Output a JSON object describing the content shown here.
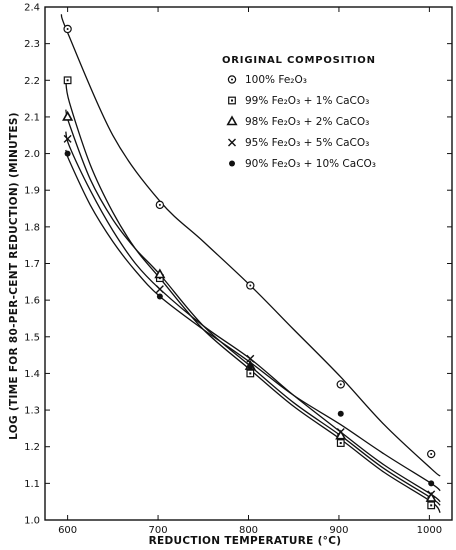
{
  "chart_data": {
    "type": "scatter",
    "xlabel": "REDUCTION TEMPERATURE (°C)",
    "ylabel": "LOG (TIME FOR 80-PER-CENT REDUCTION) (MINUTES)",
    "xlim": [
      575,
      1025
    ],
    "ylim": [
      1.0,
      2.4
    ],
    "x_ticks": [
      600,
      700,
      800,
      900,
      1000
    ],
    "y_ticks": [
      1.0,
      1.1,
      1.2,
      1.3,
      1.4,
      1.5,
      1.6,
      1.7,
      1.8,
      1.9,
      2.0,
      2.1,
      2.2,
      2.3,
      2.4
    ],
    "grid": false,
    "legend": {
      "title": "ORIGINAL COMPOSITION",
      "placement": "top-right"
    },
    "series": [
      {
        "name": "100% Fe₂O₃",
        "marker": "circle-dot",
        "x": [
          600,
          702,
          802,
          902,
          1002
        ],
        "y": [
          2.34,
          1.86,
          1.64,
          1.37,
          1.18
        ],
        "curve_x": [
          593,
          600,
          650,
          702,
          750,
          802,
          850,
          902,
          950,
          1002,
          1012
        ],
        "curve_y": [
          2.38,
          2.33,
          2.05,
          1.87,
          1.76,
          1.64,
          1.52,
          1.39,
          1.26,
          1.14,
          1.12
        ]
      },
      {
        "name": "99% Fe₂O₃ + 1% CaCO₃",
        "marker": "square-dot",
        "x": [
          600,
          702,
          802,
          902,
          1002
        ],
        "y": [
          2.2,
          1.66,
          1.4,
          1.21,
          1.04
        ],
        "curve_x": [
          598,
          602,
          625,
          650,
          675,
          702,
          750,
          802,
          850,
          902,
          950,
          1002,
          1012
        ],
        "curve_y": [
          2.2,
          2.14,
          1.97,
          1.84,
          1.74,
          1.66,
          1.52,
          1.41,
          1.31,
          1.22,
          1.13,
          1.05,
          1.02
        ]
      },
      {
        "name": "98% Fe₂O₃ + 2% CaCO₃",
        "marker": "triangle",
        "x": [
          600,
          702,
          802,
          902,
          1002
        ],
        "y": [
          2.1,
          1.67,
          1.42,
          1.23,
          1.06
        ],
        "curve_x": [
          598,
          602,
          625,
          650,
          675,
          702,
          750,
          802,
          850,
          902,
          950,
          1002,
          1012
        ],
        "curve_y": [
          2.12,
          2.08,
          1.93,
          1.82,
          1.74,
          1.67,
          1.53,
          1.42,
          1.32,
          1.23,
          1.14,
          1.06,
          1.04
        ]
      },
      {
        "name": "95% Fe₂O₃ + 5% CaCO₃",
        "marker": "x",
        "x": [
          600,
          702,
          802,
          902,
          1002
        ],
        "y": [
          2.04,
          1.63,
          1.44,
          1.24,
          1.07
        ],
        "curve_x": [
          598,
          602,
          625,
          650,
          675,
          702,
          750,
          802,
          850,
          902,
          950,
          1002,
          1012
        ],
        "curve_y": [
          2.06,
          2.02,
          1.9,
          1.79,
          1.7,
          1.63,
          1.53,
          1.44,
          1.34,
          1.24,
          1.15,
          1.07,
          1.05
        ]
      },
      {
        "name": "90% Fe₂O₃ + 10% CaCO₃",
        "marker": "filled-circle",
        "x": [
          600,
          702,
          802,
          902,
          1002
        ],
        "y": [
          2.0,
          1.61,
          1.42,
          1.29,
          1.1
        ],
        "curve_x": [
          598,
          602,
          625,
          650,
          675,
          702,
          750,
          802,
          850,
          902,
          950,
          1002,
          1012
        ],
        "curve_y": [
          2.01,
          1.98,
          1.86,
          1.76,
          1.68,
          1.61,
          1.52,
          1.43,
          1.34,
          1.26,
          1.18,
          1.1,
          1.08
        ]
      }
    ]
  }
}
